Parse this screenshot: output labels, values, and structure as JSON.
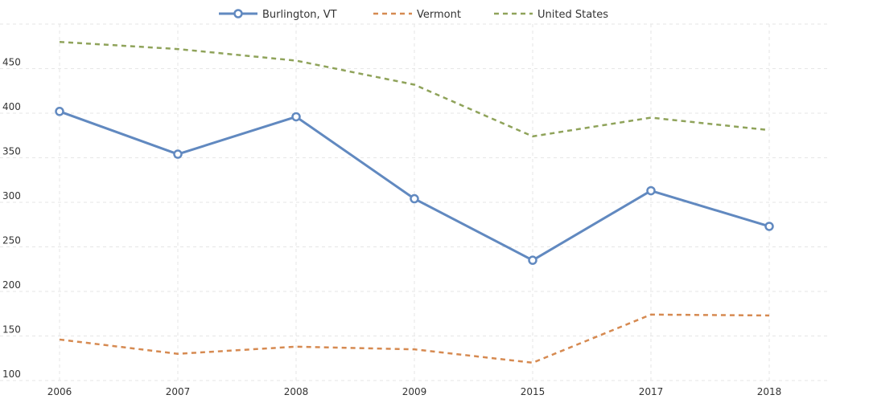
{
  "chart_data": {
    "type": "line",
    "categories": [
      "2006",
      "2007",
      "2008",
      "2009",
      "2015",
      "2017",
      "2018"
    ],
    "series": [
      {
        "name": "Burlington, VT",
        "values": [
          402,
          354,
          396,
          304,
          235,
          313,
          273
        ],
        "color": "#6189c0",
        "style": "solid",
        "markers": true
      },
      {
        "name": "Vermont",
        "values": [
          146,
          130,
          138,
          135,
          120,
          174,
          173
        ],
        "color": "#d68a51",
        "style": "dashed",
        "markers": false
      },
      {
        "name": "United States",
        "values": [
          480,
          472,
          459,
          432,
          374,
          395,
          381
        ],
        "color": "#8fa35a",
        "style": "dashed",
        "markers": false
      }
    ],
    "yticks": [
      100,
      150,
      200,
      250,
      300,
      350,
      400,
      450
    ],
    "ylim": [
      100,
      500
    ],
    "grid": true,
    "legend_position": "top-center"
  }
}
